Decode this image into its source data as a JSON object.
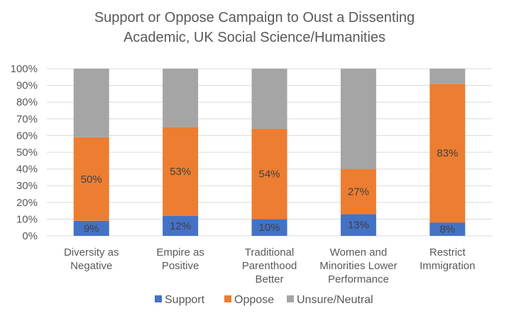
{
  "chart_data": {
    "type": "bar",
    "stacked": true,
    "title_lines": [
      "Support or Oppose Campaign to Oust a Dissenting",
      "Academic, UK Social Science/Humanities"
    ],
    "categories": [
      [
        "Diversity as",
        "Negative"
      ],
      [
        "Empire as",
        "Positive"
      ],
      [
        "Traditional",
        "Parenthood",
        "Better"
      ],
      [
        "Women and",
        "Minorities Lower",
        "Performance"
      ],
      [
        "Restrict",
        "Immigration"
      ]
    ],
    "series": [
      {
        "name": "Support",
        "color": "#4472C4",
        "values": [
          9,
          12,
          10,
          13,
          8
        ],
        "labels": [
          "9%",
          "12%",
          "10%",
          "13%",
          "8%"
        ]
      },
      {
        "name": "Oppose",
        "color": "#ED7D31",
        "values": [
          50,
          53,
          54,
          27,
          83
        ],
        "labels": [
          "50%",
          "53%",
          "54%",
          "27%",
          "83%"
        ]
      },
      {
        "name": "Unsure/Neutral",
        "color": "#A5A5A5",
        "values": [
          41,
          35,
          36,
          60,
          9
        ],
        "labels": []
      }
    ],
    "yticks": [
      "0%",
      "10%",
      "20%",
      "30%",
      "40%",
      "50%",
      "60%",
      "70%",
      "80%",
      "90%",
      "100%"
    ],
    "ylim": [
      0,
      100
    ],
    "grid": true,
    "legend_position": "bottom"
  }
}
